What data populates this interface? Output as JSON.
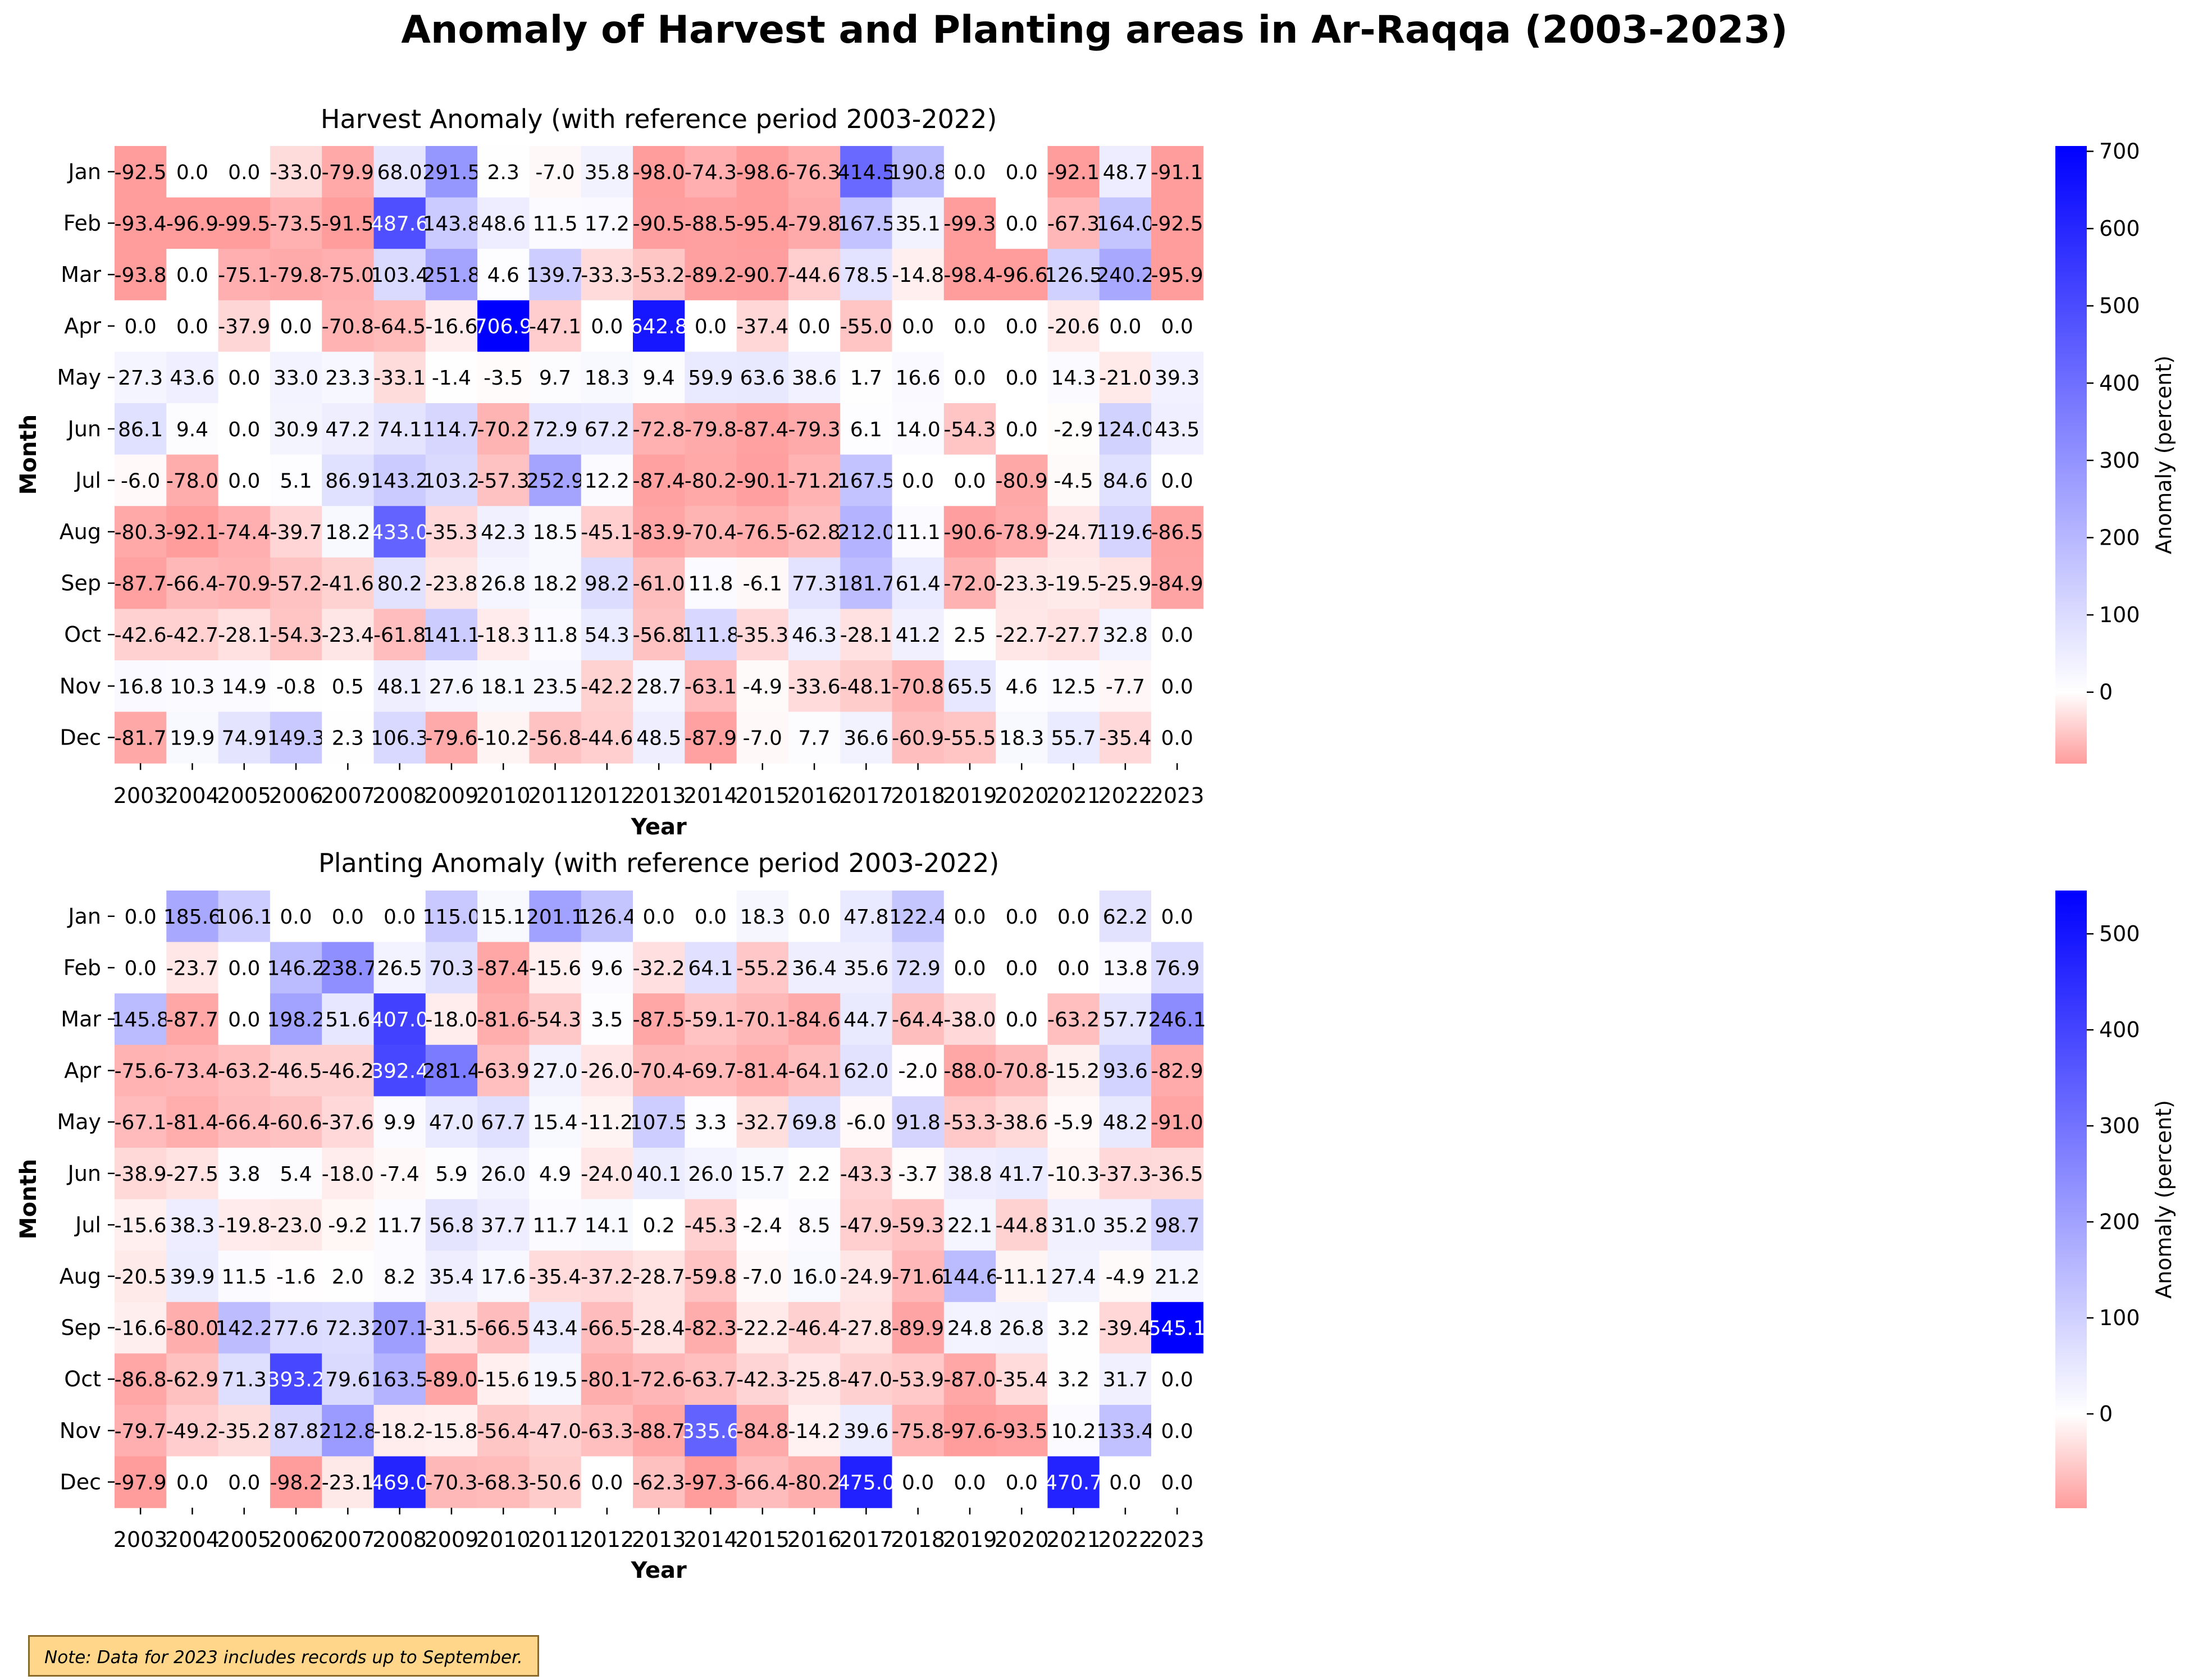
{
  "title": "Anomaly of Harvest and Planting areas in Ar-Raqqa (2003-2023)",
  "note": "Note: Data for 2023 includes records up to September.",
  "colors": {
    "negative": "#ff9c9c",
    "zero": "#ffffff",
    "positive": "#0000ff"
  },
  "chart_data": [
    {
      "type": "heatmap",
      "title": "Harvest Anomaly (with reference period 2003-2022)",
      "xlabel": "Year",
      "ylabel": "Month",
      "colorbar_label": "Anomaly (percent)",
      "colorbar_ticks": [
        "0",
        "100",
        "200",
        "300",
        "400",
        "500",
        "600",
        "700"
      ],
      "colorbar_range": [
        -92.5,
        706.9
      ],
      "x": [
        "2003",
        "2004",
        "2005",
        "2006",
        "2007",
        "2008",
        "2009",
        "2010",
        "2011",
        "2012",
        "2013",
        "2014",
        "2015",
        "2016",
        "2017",
        "2018",
        "2019",
        "2020",
        "2021",
        "2022",
        "2023"
      ],
      "y": [
        "Jan",
        "Feb",
        "Mar",
        "Apr",
        "May",
        "Jun",
        "Jul",
        "Aug",
        "Sep",
        "Oct",
        "Nov",
        "Dec"
      ],
      "values": [
        [
          -92.5,
          0.0,
          0.0,
          -33.0,
          -79.9,
          68.0,
          291.5,
          2.3,
          -7.0,
          35.8,
          -98.0,
          -74.3,
          -98.6,
          -76.3,
          414.5,
          190.8,
          0.0,
          0.0,
          -92.1,
          48.7,
          -91.1
        ],
        [
          -93.4,
          -96.9,
          -99.5,
          -73.5,
          -91.5,
          487.6,
          143.8,
          48.6,
          11.5,
          17.2,
          -90.5,
          -88.5,
          -95.4,
          -79.8,
          167.5,
          35.1,
          -99.3,
          0.0,
          -67.3,
          164.0,
          -92.5
        ],
        [
          -93.8,
          0.0,
          -75.1,
          -79.8,
          -75.0,
          103.4,
          251.8,
          4.6,
          139.7,
          -33.3,
          -53.2,
          -89.2,
          -90.7,
          -44.6,
          78.5,
          -14.8,
          -98.4,
          -96.6,
          126.5,
          240.2,
          -95.9
        ],
        [
          0.0,
          0.0,
          -37.9,
          0.0,
          -70.8,
          -64.5,
          -16.6,
          706.9,
          -47.1,
          0.0,
          642.8,
          0.0,
          -37.4,
          0.0,
          -55.0,
          0.0,
          0.0,
          0.0,
          -20.6,
          0.0,
          0.0
        ],
        [
          27.3,
          43.6,
          0.0,
          33.0,
          23.3,
          -33.1,
          -1.4,
          -3.5,
          9.7,
          18.3,
          9.4,
          59.9,
          63.6,
          38.6,
          1.7,
          16.6,
          0.0,
          0.0,
          14.3,
          -21.0,
          39.3
        ],
        [
          86.1,
          9.4,
          0.0,
          30.9,
          47.2,
          74.1,
          114.7,
          -70.2,
          72.9,
          67.2,
          -72.8,
          -79.8,
          -87.4,
          -79.3,
          6.1,
          14.0,
          -54.3,
          0.0,
          -2.9,
          124.0,
          43.5
        ],
        [
          -6.0,
          -78.0,
          0.0,
          5.1,
          86.9,
          143.2,
          103.2,
          -57.3,
          252.9,
          12.2,
          -87.4,
          -80.2,
          -90.1,
          -71.2,
          167.5,
          0.0,
          0.0,
          -80.9,
          -4.5,
          84.6,
          0.0
        ],
        [
          -80.3,
          -92.1,
          -74.4,
          -39.7,
          18.2,
          433.0,
          -35.3,
          42.3,
          18.5,
          -45.1,
          -83.9,
          -70.4,
          -76.5,
          -62.8,
          212.0,
          11.1,
          -90.6,
          -78.9,
          -24.7,
          119.6,
          -86.5
        ],
        [
          -87.7,
          -66.4,
          -70.9,
          -57.2,
          -41.6,
          80.2,
          -23.8,
          26.8,
          18.2,
          98.2,
          -61.0,
          11.8,
          -6.1,
          77.3,
          181.7,
          61.4,
          -72.0,
          -23.3,
          -19.5,
          -25.9,
          -84.9
        ],
        [
          -42.6,
          -42.7,
          -28.1,
          -54.3,
          -23.4,
          -61.8,
          141.1,
          -18.3,
          11.8,
          54.3,
          -56.8,
          111.8,
          -35.3,
          46.3,
          -28.1,
          41.2,
          2.5,
          -22.7,
          -27.7,
          32.8,
          0.0
        ],
        [
          16.8,
          10.3,
          14.9,
          -0.8,
          0.5,
          48.1,
          27.6,
          18.1,
          23.5,
          -42.2,
          28.7,
          -63.1,
          -4.9,
          -33.6,
          -48.1,
          -70.8,
          65.5,
          4.6,
          12.5,
          -7.7,
          0.0
        ],
        [
          -81.7,
          19.9,
          74.9,
          149.3,
          2.3,
          106.3,
          -79.6,
          -10.2,
          -56.8,
          -44.6,
          48.5,
          -87.9,
          -7.0,
          7.7,
          36.6,
          -60.9,
          -55.5,
          18.3,
          55.7,
          -35.4,
          0.0
        ]
      ]
    },
    {
      "type": "heatmap",
      "title": "Planting Anomaly (with reference period 2003-2022)",
      "xlabel": "Year",
      "ylabel": "Month",
      "colorbar_label": "Anomaly (percent)",
      "colorbar_ticks": [
        "0",
        "100",
        "200",
        "300",
        "400",
        "500"
      ],
      "colorbar_range": [
        -98.2,
        545.1
      ],
      "x": [
        "2003",
        "2004",
        "2005",
        "2006",
        "2007",
        "2008",
        "2009",
        "2010",
        "2011",
        "2012",
        "2013",
        "2014",
        "2015",
        "2016",
        "2017",
        "2018",
        "2019",
        "2020",
        "2021",
        "2022",
        "2023"
      ],
      "y": [
        "Jan",
        "Feb",
        "Mar",
        "Apr",
        "May",
        "Jun",
        "Jul",
        "Aug",
        "Sep",
        "Oct",
        "Nov",
        "Dec"
      ],
      "values": [
        [
          0.0,
          185.6,
          106.1,
          0.0,
          0.0,
          0.0,
          115.0,
          15.1,
          201.1,
          126.4,
          0.0,
          0.0,
          18.3,
          0.0,
          47.8,
          122.4,
          0.0,
          0.0,
          0.0,
          62.2,
          0.0
        ],
        [
          0.0,
          -23.7,
          0.0,
          146.2,
          238.7,
          26.5,
          70.3,
          -87.4,
          -15.6,
          9.6,
          -32.2,
          64.1,
          -55.2,
          36.4,
          35.6,
          72.9,
          0.0,
          0.0,
          0.0,
          13.8,
          76.9
        ],
        [
          145.8,
          -87.7,
          0.0,
          198.2,
          51.6,
          407.0,
          -18.0,
          -81.6,
          -54.3,
          3.5,
          -87.5,
          -59.1,
          -70.1,
          -84.6,
          44.7,
          -64.4,
          -38.0,
          0.0,
          -63.2,
          57.7,
          246.1
        ],
        [
          -75.6,
          -73.4,
          -63.2,
          -46.5,
          -46.2,
          392.4,
          281.4,
          -63.9,
          27.0,
          -26.0,
          -70.4,
          -69.7,
          -81.4,
          -64.1,
          62.0,
          -2.0,
          -88.0,
          -70.8,
          -15.2,
          93.6,
          -82.9
        ],
        [
          -67.1,
          -81.4,
          -66.4,
          -60.6,
          -37.6,
          9.9,
          47.0,
          67.7,
          15.4,
          -11.2,
          107.5,
          3.3,
          -32.7,
          69.8,
          -6.0,
          91.8,
          -53.3,
          -38.6,
          -5.9,
          48.2,
          -91.0
        ],
        [
          -38.9,
          -27.5,
          3.8,
          5.4,
          -18.0,
          -7.4,
          5.9,
          26.0,
          4.9,
          -24.0,
          40.1,
          26.0,
          15.7,
          2.2,
          -43.3,
          -3.7,
          38.8,
          41.7,
          -10.3,
          -37.3,
          -36.5
        ],
        [
          -15.6,
          38.3,
          -19.8,
          -23.0,
          -9.2,
          11.7,
          56.8,
          37.7,
          11.7,
          14.1,
          0.2,
          -45.3,
          -2.4,
          8.5,
          -47.9,
          -59.3,
          22.1,
          -44.8,
          31.0,
          35.2,
          98.7
        ],
        [
          -20.5,
          39.9,
          11.5,
          -1.6,
          2.0,
          8.2,
          35.4,
          17.6,
          -35.4,
          -37.2,
          -28.7,
          -59.8,
          -7.0,
          16.0,
          -24.9,
          -71.6,
          144.6,
          -11.1,
          27.4,
          -4.9,
          21.2
        ],
        [
          -16.6,
          -80.0,
          142.2,
          77.6,
          72.3,
          207.1,
          -31.5,
          -66.5,
          43.4,
          -66.5,
          -28.4,
          -82.3,
          -22.2,
          -46.4,
          -27.8,
          -89.9,
          24.8,
          26.8,
          3.2,
          -39.4,
          545.1
        ],
        [
          -86.8,
          -62.9,
          71.3,
          393.2,
          79.6,
          163.5,
          -89.0,
          -15.6,
          19.5,
          -80.1,
          -72.6,
          -63.7,
          -42.3,
          -25.8,
          -47.0,
          -53.9,
          -87.0,
          -35.4,
          3.2,
          31.7,
          0.0
        ],
        [
          -79.7,
          -49.2,
          -35.2,
          87.8,
          212.8,
          -18.2,
          -15.8,
          -56.4,
          -47.0,
          -63.3,
          -88.7,
          335.6,
          -84.8,
          -14.2,
          39.6,
          -75.8,
          -97.6,
          -93.5,
          10.2,
          133.4,
          0.0
        ],
        [
          -97.9,
          0.0,
          0.0,
          -98.2,
          -23.1,
          469.0,
          -70.3,
          -68.3,
          -50.6,
          0.0,
          -62.3,
          -97.3,
          -66.4,
          -80.2,
          475.0,
          0.0,
          0.0,
          0.0,
          470.7,
          0.0,
          0.0
        ]
      ]
    }
  ]
}
